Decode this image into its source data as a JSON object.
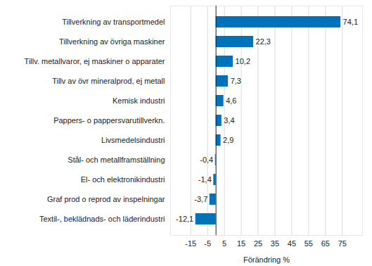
{
  "chart_data": {
    "type": "bar",
    "orientation": "horizontal",
    "categories": [
      "Tillverkning av transportmedel",
      "Tillverkning av övriga maskiner",
      "Tillv. metallvaror, ej maskiner o apparater",
      "Tillv av övr mineralprod, ej metall",
      "Kemisk industri",
      "Pappers- o pappersvarutillverkn.",
      "Livsmedelsindustri",
      "Stål- och metallframställning",
      "El- och elektronikindustri",
      "Graf prod o reprod av inspelningar",
      "Textil-, beklädnads- och läderindustri"
    ],
    "values": [
      74.1,
      22.3,
      10.2,
      7.3,
      4.6,
      3.4,
      2.9,
      -0.4,
      -1.4,
      -3.7,
      -12.1
    ],
    "value_labels": [
      "74,1",
      "22,3",
      "10,2",
      "7,3",
      "4,6",
      "3,4",
      "2,9",
      "-0,4",
      "-1,4",
      "-3,7",
      "-12,1"
    ],
    "data_labels": true,
    "color": "#0072b9",
    "x_label": "Förändring %",
    "xlim": [
      -27,
      87
    ],
    "xticks": [
      -15,
      -5,
      5,
      15,
      25,
      35,
      45,
      55,
      65,
      75
    ],
    "grid": true
  }
}
